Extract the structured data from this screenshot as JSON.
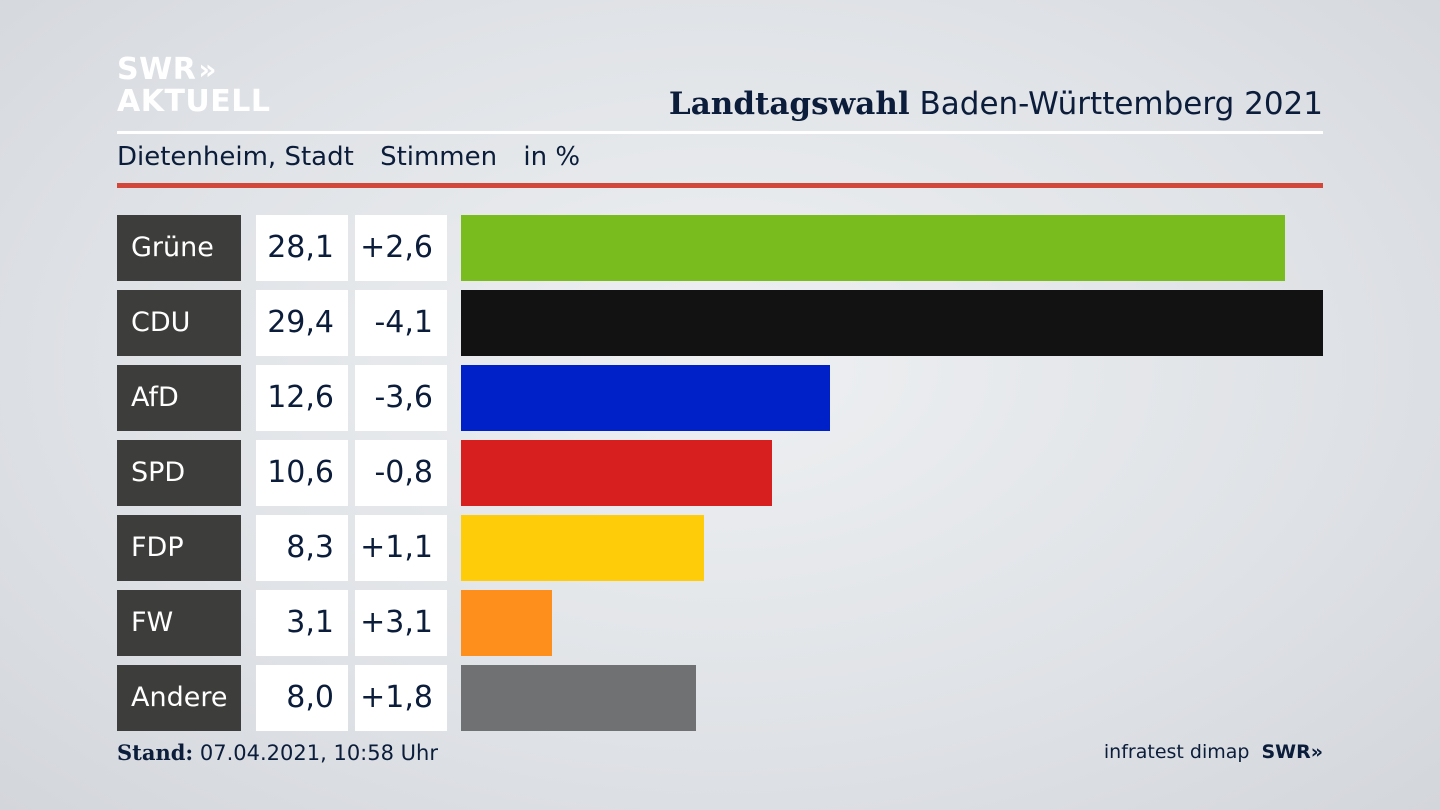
{
  "brand": {
    "logo_line1": "SWR",
    "logo_chevrons": "»",
    "logo_line2": "AKTUELL"
  },
  "header": {
    "title_bold": "Landtagswahl",
    "title_rest": " Baden-Württemberg 2021"
  },
  "subheader": {
    "place": "Dietenheim, Stadt",
    "type": "Stimmen",
    "unit": "in %"
  },
  "footer": {
    "stand_label": "Stand:",
    "stand_value": "07.04.2021, 10:58 Uhr",
    "source": "infratest dimap",
    "brand": "SWR»"
  },
  "colors": {
    "accent_rule": "#d2473a",
    "party_label_bg": "#3d3d3b"
  },
  "chart_data": {
    "type": "bar",
    "orientation": "horizontal",
    "title": "Landtagswahl Baden-Württemberg 2021",
    "categories": [
      "Grüne",
      "CDU",
      "AfD",
      "SPD",
      "FDP",
      "FW",
      "Andere"
    ],
    "values": [
      28.1,
      29.4,
      12.6,
      10.6,
      8.3,
      3.1,
      8.0
    ],
    "value_labels": [
      "28,1",
      "29,4",
      "12,6",
      "10,6",
      "8,3",
      "3,1",
      "8,0"
    ],
    "changes": [
      2.6,
      -4.1,
      -3.6,
      -0.8,
      1.1,
      3.1,
      1.8
    ],
    "change_labels": [
      "+2,6",
      "-4,1",
      "-3,6",
      "-0,8",
      "+1,1",
      "+3,1",
      "+1,8"
    ],
    "colors": [
      "#78bc1e",
      "#121212",
      "#0021c7",
      "#d71f1f",
      "#ffcc09",
      "#ff8f1c",
      "#707173"
    ],
    "xlim": [
      0,
      29.4
    ],
    "grid": false,
    "legend": "none"
  }
}
